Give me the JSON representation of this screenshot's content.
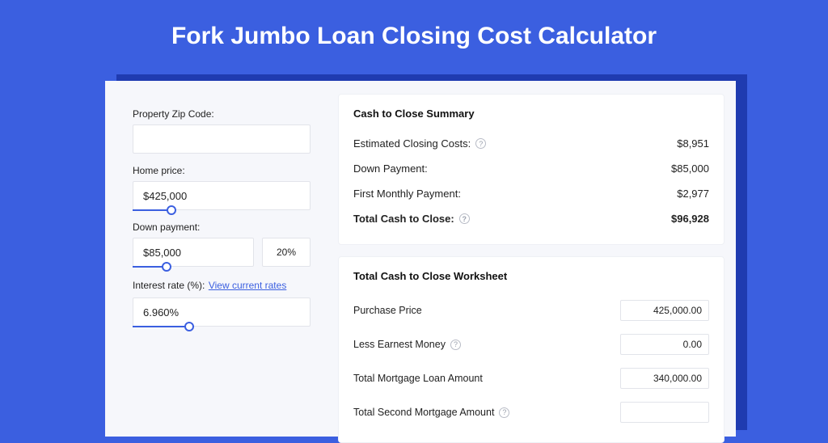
{
  "title": "Fork Jumbo Loan Closing Cost Calculator",
  "colors": {
    "bg": "#3b5fe0",
    "shadow": "#1f3bb0",
    "card_bg": "#f6f7fb",
    "panel_bg": "#ffffff",
    "border": "#e2e4ea",
    "text": "#222222",
    "link": "#3b5fe0"
  },
  "inputs": {
    "zip": {
      "label": "Property Zip Code:",
      "value": ""
    },
    "home_price": {
      "label": "Home price:",
      "value": "$425,000",
      "slider_pct": 22
    },
    "down_payment": {
      "label": "Down payment:",
      "value": "$85,000",
      "pct_display": "20%",
      "slider_pct": 28
    },
    "interest": {
      "label": "Interest rate (%):",
      "link_text": "View current rates",
      "value": "6.960%",
      "slider_pct": 32
    }
  },
  "summary": {
    "title": "Cash to Close Summary",
    "rows": [
      {
        "label": "Estimated Closing Costs:",
        "help": true,
        "value": "$8,951"
      },
      {
        "label": "Down Payment:",
        "help": false,
        "value": "$85,000"
      },
      {
        "label": "First Monthly Payment:",
        "help": false,
        "value": "$2,977"
      }
    ],
    "total": {
      "label": "Total Cash to Close:",
      "help": true,
      "value": "$96,928"
    }
  },
  "worksheet": {
    "title": "Total Cash to Close Worksheet",
    "rows": [
      {
        "label": "Purchase Price",
        "help": false,
        "value": "425,000.00"
      },
      {
        "label": "Less Earnest Money",
        "help": true,
        "value": "0.00"
      },
      {
        "label": "Total Mortgage Loan Amount",
        "help": false,
        "value": "340,000.00"
      },
      {
        "label": "Total Second Mortgage Amount",
        "help": true,
        "value": ""
      }
    ]
  }
}
